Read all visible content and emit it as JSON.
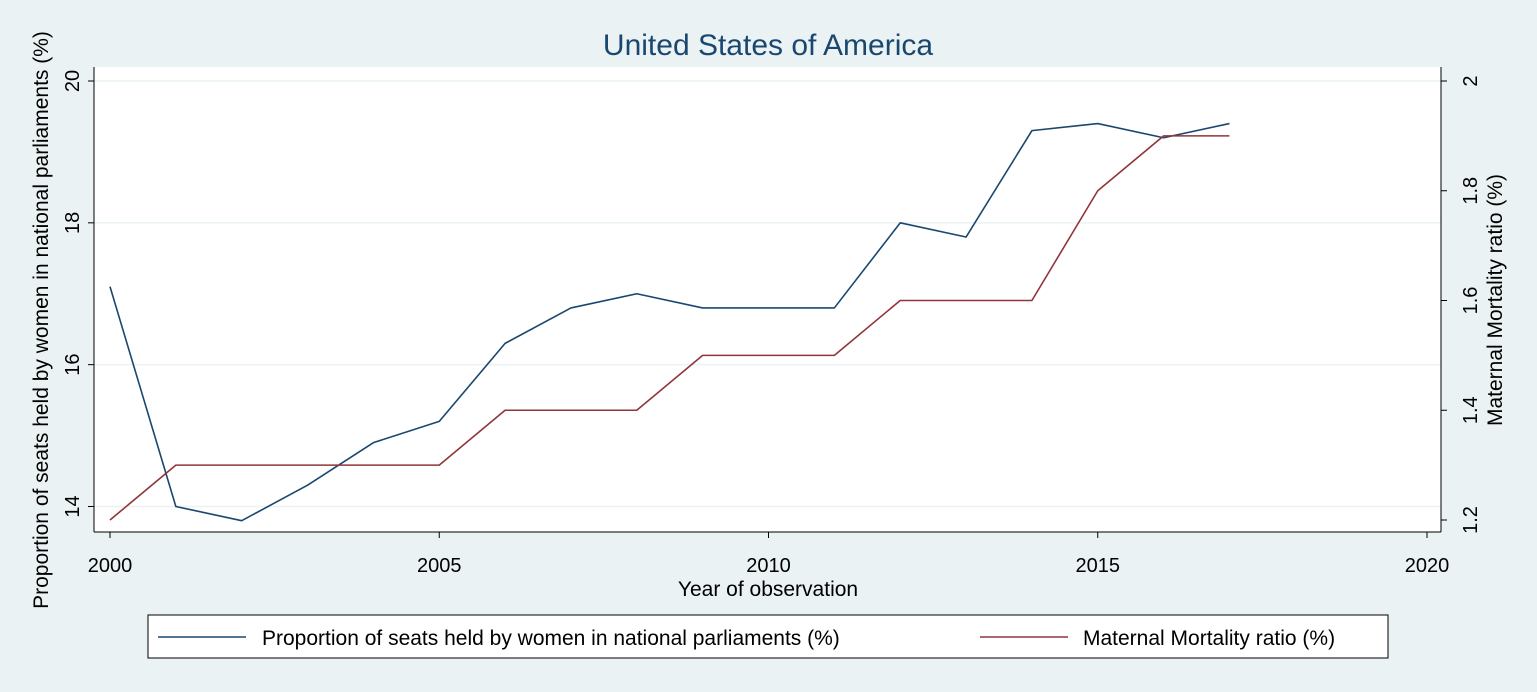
{
  "chart_data": {
    "type": "line",
    "title": "United States of America",
    "xlabel": "Year of observation",
    "ylabel_left": "Proportion of seats held by women in national parliaments (%)",
    "ylabel_right": "Maternal Mortality ratio (%)",
    "xlim": [
      2000,
      2020
    ],
    "ylim_left": [
      13.8,
      20.2
    ],
    "ylim_right": [
      1.18,
      2.03
    ],
    "x_ticks": [
      2000,
      2005,
      2010,
      2015,
      2020
    ],
    "y_ticks_left": [
      14,
      16,
      18,
      20
    ],
    "y_ticks_right": [
      1.2,
      1.4,
      1.6,
      1.8,
      2
    ],
    "x_tick_labels": [
      "2000",
      "2005",
      "2010",
      "2015",
      "2020"
    ],
    "y_tick_labels_left": [
      "14",
      "16",
      "18",
      "20"
    ],
    "y_tick_labels_right": [
      "1.2",
      "1.4",
      "1.6",
      "1.8",
      "2"
    ],
    "grid": true,
    "legend_position": "bottom",
    "series": [
      {
        "name": "Proportion of seats held by women in national parliaments (%)",
        "axis": "left",
        "color": "#1a476f",
        "x": [
          2000,
          2001,
          2002,
          2003,
          2004,
          2005,
          2006,
          2007,
          2008,
          2009,
          2010,
          2011,
          2012,
          2013,
          2014,
          2015,
          2016,
          2017
        ],
        "values": [
          17.1,
          14.0,
          13.8,
          14.3,
          14.9,
          15.2,
          16.3,
          16.8,
          17.0,
          16.8,
          16.8,
          16.8,
          18.0,
          17.8,
          19.3,
          19.4,
          19.2,
          19.4
        ]
      },
      {
        "name": "Maternal Mortality ratio (%)",
        "axis": "right",
        "color": "#90353b",
        "x": [
          2000,
          2001,
          2002,
          2003,
          2004,
          2005,
          2006,
          2007,
          2008,
          2009,
          2010,
          2011,
          2012,
          2013,
          2014,
          2015,
          2016,
          2017
        ],
        "values": [
          1.2,
          1.3,
          1.3,
          1.3,
          1.3,
          1.3,
          1.4,
          1.4,
          1.4,
          1.5,
          1.5,
          1.5,
          1.6,
          1.6,
          1.6,
          1.8,
          1.9,
          1.9
        ]
      }
    ]
  }
}
